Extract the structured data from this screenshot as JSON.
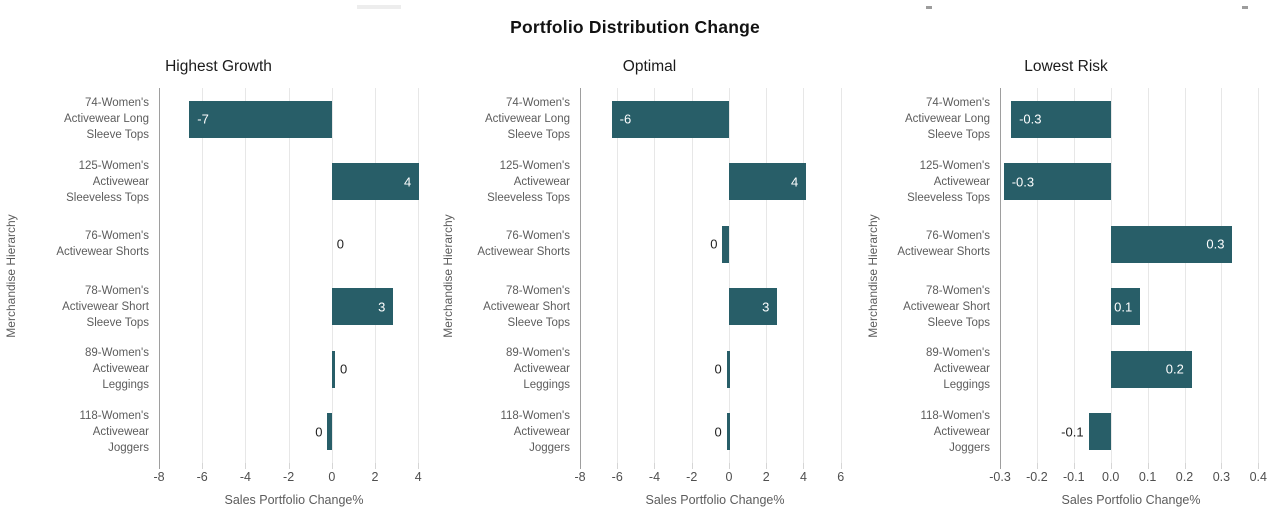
{
  "chart_data": {
    "type": "bar",
    "orientation": "horizontal",
    "title": "Portfolio Distribution Change",
    "xlabel": "Sales Portfolio Change%",
    "ylabel": "Merchandise Hierarchy",
    "grid": true,
    "legend": false,
    "bar_color": "#285e68",
    "categories": [
      "74-Women's Activewear Long Sleeve Tops",
      "125-Women's Activewear Sleeveless Tops",
      "76-Women's Activewear Shorts",
      "78-Women's Activewear Short Sleeve Tops",
      "89-Women's Activewear Leggings",
      "118-Women's Activewear Joggers"
    ],
    "category_label_lines": [
      [
        "74-Women's",
        "Activewear Long",
        "Sleeve Tops"
      ],
      [
        "125-Women's",
        "Activewear",
        "Sleeveless Tops"
      ],
      [
        "76-Women's",
        "Activewear Shorts"
      ],
      [
        "78-Women's",
        "Activewear Short",
        "Sleeve Tops"
      ],
      [
        "89-Women's",
        "Activewear",
        "Leggings"
      ],
      [
        "118-Women's",
        "Activewear",
        "Joggers"
      ]
    ],
    "panels": [
      {
        "title": "Highest Growth",
        "values": [
          -7,
          4,
          0,
          3,
          0,
          0
        ],
        "data_labels": [
          "-7",
          "4",
          "0",
          "3",
          "0",
          "0"
        ],
        "bar_extents": [
          -6.6,
          4.05,
          0,
          2.85,
          0.15,
          -0.2
        ],
        "xtick_labels": [
          "-8",
          "-6",
          "-4",
          "-2",
          "0",
          "2",
          "4"
        ],
        "xtick_values": [
          -8,
          -6,
          -4,
          -2,
          0,
          2,
          4
        ],
        "xlim": [
          -8,
          4.5
        ]
      },
      {
        "title": "Optimal",
        "values": [
          -6,
          4,
          0,
          3,
          0,
          0
        ],
        "data_labels": [
          "-6",
          "4",
          "0",
          "3",
          "0",
          "0"
        ],
        "bar_extents": [
          -6.3,
          4.15,
          -0.35,
          2.6,
          -0.12,
          -0.12
        ],
        "xtick_labels": [
          "-8",
          "-6",
          "-4",
          "-2",
          "0",
          "2",
          "4",
          "6"
        ],
        "xtick_values": [
          -8,
          -6,
          -4,
          -2,
          0,
          2,
          4,
          6
        ],
        "xlim": [
          -8,
          6.5
        ]
      },
      {
        "title": "Lowest Risk",
        "values": [
          -0.3,
          -0.3,
          0.3,
          0.1,
          0.2,
          -0.1
        ],
        "data_labels": [
          "-0.3",
          "-0.3",
          "0.3",
          "0.1",
          "0.2",
          "-0.1"
        ],
        "bar_extents": [
          -0.27,
          -0.29,
          0.33,
          0.08,
          0.22,
          -0.06
        ],
        "xtick_labels": [
          "-0.3",
          "-0.2",
          "-0.1",
          "0.0",
          "0.1",
          "0.2",
          "0.3",
          "0.4"
        ],
        "xtick_values": [
          -0.3,
          -0.2,
          -0.1,
          0,
          0.1,
          0.2,
          0.3,
          0.4
        ],
        "xlim": [
          -0.3,
          0.41
        ]
      }
    ]
  },
  "colors": {
    "bar": "#285e68",
    "bar_label_inside": "#ffffff",
    "bar_label_outside": "#1f1f1f",
    "grid_line": "#e7e7e7",
    "axis_line": "#9e9e9e",
    "tick_mark": "#d5d5d5",
    "tick_label": "#4f4f4f",
    "category_label": "#5c5c5c",
    "axis_title": "#5c5c5c",
    "panel_title": "#1b1b1b",
    "main_title": "#121212"
  }
}
